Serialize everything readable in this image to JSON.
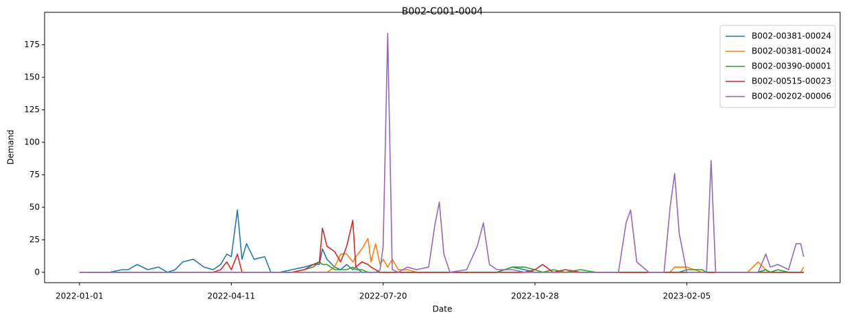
{
  "chart_data": {
    "type": "line",
    "title": "B002-C001-0004",
    "x_label": "Date",
    "y_label": "Demand",
    "x": [
      "2022-01-01",
      "2022-01-11",
      "2022-01-21",
      "2022-01-29",
      "2022-02-02",
      "2022-02-08",
      "2022-02-15",
      "2022-02-22",
      "2022-02-28",
      "2022-03-05",
      "2022-03-10",
      "2022-03-17",
      "2022-03-24",
      "2022-03-30",
      "2022-04-04",
      "2022-04-08",
      "2022-04-11",
      "2022-04-15",
      "2022-04-18",
      "2022-04-21",
      "2022-04-26",
      "2022-05-03",
      "2022-05-07",
      "2022-05-13",
      "2022-05-21",
      "2022-05-29",
      "2022-06-04",
      "2022-06-08",
      "2022-06-10",
      "2022-06-13",
      "2022-06-18",
      "2022-06-22",
      "2022-06-26",
      "2022-06-30",
      "2022-07-02",
      "2022-07-06",
      "2022-07-10",
      "2022-07-12",
      "2022-07-15",
      "2022-07-18",
      "2022-07-20",
      "2022-07-23",
      "2022-07-26",
      "2022-07-30",
      "2022-08-05",
      "2022-08-11",
      "2022-08-19",
      "2022-08-23",
      "2022-08-26",
      "2022-08-29",
      "2022-09-02",
      "2022-09-13",
      "2022-09-20",
      "2022-09-24",
      "2022-09-28",
      "2022-10-03",
      "2022-10-13",
      "2022-10-21",
      "2022-10-28",
      "2022-11-02",
      "2022-11-09",
      "2022-11-17",
      "2022-11-27",
      "2022-12-07",
      "2022-12-22",
      "2022-12-27",
      "2022-12-30",
      "2023-01-03",
      "2023-01-11",
      "2023-01-21",
      "2023-01-25",
      "2023-01-28",
      "2023-01-31",
      "2023-02-05",
      "2023-02-15",
      "2023-02-18",
      "2023-02-21",
      "2023-02-24",
      "2023-03-07",
      "2023-03-17",
      "2023-03-24",
      "2023-03-29",
      "2023-04-01",
      "2023-04-06",
      "2023-04-13",
      "2023-04-18",
      "2023-04-21",
      "2023-04-23"
    ],
    "series": [
      {
        "name": "B002-00381-00024",
        "color": "#1f77b4",
        "values": [
          0,
          0,
          0,
          2,
          2,
          6,
          2,
          4,
          0,
          2,
          8,
          10,
          4,
          2,
          6,
          14,
          12,
          48,
          10,
          22,
          10,
          12,
          0,
          0,
          2,
          4,
          6,
          6,
          18,
          10,
          4,
          2,
          6,
          2,
          4,
          0,
          0,
          0,
          0,
          0,
          0,
          0,
          0,
          0,
          0,
          0,
          0,
          0,
          0,
          0,
          0,
          0,
          0,
          0,
          0,
          0,
          4,
          2,
          0,
          0,
          0,
          0,
          0,
          0,
          0,
          0,
          0,
          0,
          0,
          0,
          0,
          0,
          0,
          0,
          0,
          0,
          0,
          0,
          0,
          0,
          0,
          2,
          0,
          0,
          0,
          0,
          0,
          0
        ]
      },
      {
        "name": "B002-00381-00024",
        "color": "#ff7f0e",
        "values": [
          0,
          0,
          0,
          0,
          0,
          0,
          0,
          0,
          0,
          0,
          0,
          0,
          0,
          0,
          0,
          0,
          0,
          0,
          0,
          0,
          0,
          0,
          0,
          0,
          0,
          0,
          0,
          0,
          0,
          0,
          4,
          14,
          14,
          8,
          12,
          18,
          26,
          8,
          22,
          6,
          10,
          4,
          10,
          2,
          2,
          0,
          0,
          0,
          0,
          0,
          0,
          0,
          0,
          0,
          0,
          0,
          0,
          0,
          0,
          0,
          0,
          0,
          0,
          0,
          0,
          0,
          0,
          0,
          0,
          0,
          0,
          4,
          4,
          4,
          0,
          0,
          0,
          0,
          0,
          0,
          8,
          2,
          0,
          2,
          0,
          0,
          0,
          4
        ]
      },
      {
        "name": "B002-00390-00001",
        "color": "#2ca02c",
        "values": [
          0,
          0,
          0,
          0,
          0,
          0,
          0,
          0,
          0,
          0,
          0,
          0,
          0,
          0,
          0,
          0,
          0,
          0,
          0,
          0,
          0,
          0,
          0,
          0,
          0,
          2,
          4,
          8,
          6,
          6,
          2,
          2,
          2,
          4,
          2,
          2,
          0,
          0,
          0,
          0,
          0,
          0,
          0,
          0,
          0,
          0,
          0,
          0,
          0,
          0,
          0,
          0,
          0,
          0,
          0,
          0,
          4,
          4,
          2,
          0,
          2,
          0,
          2,
          0,
          0,
          0,
          0,
          0,
          0,
          0,
          0,
          0,
          0,
          2,
          2,
          0,
          0,
          0,
          0,
          0,
          0,
          2,
          0,
          2,
          0,
          0,
          0,
          0
        ]
      },
      {
        "name": "B002-00515-00023",
        "color": "#d62728",
        "values": [
          0,
          0,
          0,
          0,
          0,
          0,
          0,
          0,
          0,
          0,
          0,
          0,
          0,
          0,
          2,
          8,
          2,
          14,
          0,
          0,
          0,
          0,
          0,
          0,
          0,
          2,
          6,
          8,
          34,
          20,
          16,
          8,
          20,
          40,
          4,
          8,
          6,
          4,
          2,
          0,
          0,
          0,
          0,
          0,
          0,
          0,
          0,
          0,
          0,
          0,
          0,
          0,
          0,
          0,
          0,
          0,
          0,
          0,
          2,
          6,
          0,
          2,
          0,
          0,
          0,
          0,
          0,
          0,
          0,
          0,
          0,
          0,
          0,
          0,
          0,
          0,
          0,
          0,
          0,
          0,
          0,
          0,
          0,
          0,
          0,
          0,
          0,
          0
        ]
      },
      {
        "name": "B002-00202-00006",
        "color": "#9467bd",
        "values": [
          0,
          0,
          0,
          0,
          0,
          0,
          0,
          0,
          0,
          0,
          0,
          0,
          0,
          0,
          0,
          0,
          0,
          0,
          0,
          0,
          0,
          0,
          0,
          0,
          0,
          0,
          0,
          0,
          0,
          0,
          0,
          0,
          0,
          0,
          0,
          0,
          0,
          0,
          0,
          2,
          20,
          184,
          2,
          0,
          4,
          2,
          4,
          36,
          54,
          14,
          0,
          2,
          20,
          38,
          6,
          2,
          2,
          0,
          0,
          0,
          0,
          0,
          0,
          0,
          0,
          38,
          48,
          8,
          0,
          0,
          50,
          76,
          30,
          0,
          0,
          0,
          86,
          0,
          0,
          0,
          0,
          14,
          4,
          6,
          2,
          22,
          22,
          12
        ]
      }
    ],
    "xlim": [
      "2021-12-09",
      "2023-05-17"
    ],
    "xticks": [
      "2022-01-01",
      "2022-04-11",
      "2022-07-20",
      "2022-10-28",
      "2023-02-05"
    ],
    "ylim": [
      -8,
      200
    ],
    "yticks": [
      0,
      25,
      50,
      75,
      100,
      125,
      150,
      175
    ],
    "legend": "upper right"
  }
}
